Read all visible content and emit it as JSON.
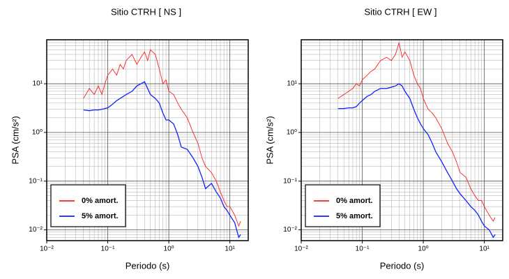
{
  "chart_data": [
    {
      "type": "line",
      "title": "Sitio CTRH [ NS ]",
      "xlabel": "Periodo (s)",
      "ylabel": "PSA (cm/s²)",
      "x": [
        0.04,
        0.05,
        0.06,
        0.07,
        0.08,
        0.09,
        0.1,
        0.12,
        0.14,
        0.16,
        0.18,
        0.2,
        0.25,
        0.3,
        0.35,
        0.4,
        0.45,
        0.5,
        0.6,
        0.7,
        0.8,
        0.9,
        1.0,
        1.2,
        1.4,
        1.6,
        2,
        2.5,
        3,
        3.5,
        4,
        5,
        6,
        7,
        8,
        9,
        10,
        12,
        14,
        15
      ],
      "series": [
        {
          "name": "0% amort.",
          "color": "#ff2020",
          "values": [
            5,
            8,
            6,
            9,
            6,
            10,
            15,
            20,
            15,
            25,
            20,
            30,
            40,
            25,
            35,
            45,
            30,
            50,
            40,
            20,
            10,
            12,
            7,
            6,
            4,
            3,
            2,
            1,
            0.6,
            0.3,
            0.2,
            0.15,
            0.1,
            0.06,
            0.04,
            0.03,
            0.03,
            0.02,
            0.012,
            0.015
          ]
        },
        {
          "name": "5% amort.",
          "color": "#1020ff",
          "values": [
            2.9,
            2.8,
            2.9,
            2.9,
            3.0,
            3.1,
            3.2,
            3.8,
            4.5,
            5,
            5.5,
            6,
            7,
            9,
            10,
            11,
            8,
            6,
            5,
            4,
            2.5,
            1.8,
            1.8,
            1.5,
            0.9,
            0.5,
            0.45,
            0.3,
            0.2,
            0.12,
            0.07,
            0.09,
            0.06,
            0.045,
            0.03,
            0.025,
            0.02,
            0.014,
            0.007,
            0.008
          ]
        }
      ],
      "xlim": [
        0.01,
        20
      ],
      "ylim": [
        0.006,
        80
      ],
      "xticks": [
        {
          "value": 0.01,
          "label": "10⁻²"
        },
        {
          "value": 0.1,
          "label": "10⁻¹"
        },
        {
          "value": 1,
          "label": "10⁰"
        },
        {
          "value": 10,
          "label": "10¹"
        }
      ],
      "yticks": [
        {
          "value": 0.01,
          "label": "10⁻²"
        },
        {
          "value": 0.1,
          "label": "10⁻¹"
        },
        {
          "value": 1,
          "label": "10⁰"
        },
        {
          "value": 10,
          "label": "10¹"
        }
      ],
      "log_x": true,
      "log_y": true,
      "grid": true,
      "legend": "lower left"
    },
    {
      "type": "line",
      "title": "Sitio CTRH [ EW ]",
      "xlabel": "Periodo (s)",
      "ylabel": "PSA (cm/s²)",
      "x": [
        0.04,
        0.05,
        0.06,
        0.07,
        0.08,
        0.09,
        0.1,
        0.12,
        0.14,
        0.16,
        0.18,
        0.2,
        0.25,
        0.3,
        0.35,
        0.4,
        0.45,
        0.5,
        0.6,
        0.7,
        0.8,
        0.9,
        1.0,
        1.2,
        1.4,
        1.6,
        2,
        2.5,
        3,
        3.5,
        4,
        5,
        6,
        7,
        8,
        9,
        10,
        12,
        14,
        15
      ],
      "series": [
        {
          "name": "0% amort.",
          "color": "#ff2020",
          "values": [
            5,
            6,
            7,
            8,
            10,
            9,
            12,
            15,
            18,
            20,
            25,
            30,
            35,
            30,
            40,
            70,
            35,
            45,
            30,
            15,
            10,
            8,
            5,
            3,
            2.5,
            2,
            1.2,
            0.6,
            0.4,
            0.25,
            0.15,
            0.12,
            0.07,
            0.05,
            0.04,
            0.04,
            0.03,
            0.02,
            0.015,
            0.018
          ]
        },
        {
          "name": "5% amort.",
          "color": "#1020ff",
          "values": [
            3.1,
            3.1,
            3.2,
            3.2,
            3.4,
            4,
            4.5,
            5.5,
            6,
            7,
            7.5,
            8,
            8,
            8.5,
            9,
            10,
            9,
            7,
            5,
            3,
            2,
            1.5,
            1.2,
            0.9,
            0.6,
            0.4,
            0.25,
            0.15,
            0.1,
            0.07,
            0.055,
            0.04,
            0.03,
            0.025,
            0.02,
            0.015,
            0.012,
            0.01,
            0.007,
            0.008
          ]
        }
      ],
      "xlim": [
        0.01,
        20
      ],
      "ylim": [
        0.006,
        80
      ],
      "xticks": [
        {
          "value": 0.01,
          "label": "10⁻²"
        },
        {
          "value": 0.1,
          "label": "10⁻¹"
        },
        {
          "value": 1,
          "label": "10⁰"
        },
        {
          "value": 10,
          "label": "10¹"
        }
      ],
      "yticks": [
        {
          "value": 0.01,
          "label": "10⁻²"
        },
        {
          "value": 0.1,
          "label": "10⁻¹"
        },
        {
          "value": 1,
          "label": "10⁰"
        },
        {
          "value": 10,
          "label": "10¹"
        }
      ],
      "log_x": true,
      "log_y": true,
      "grid": true,
      "legend": "lower left"
    }
  ]
}
